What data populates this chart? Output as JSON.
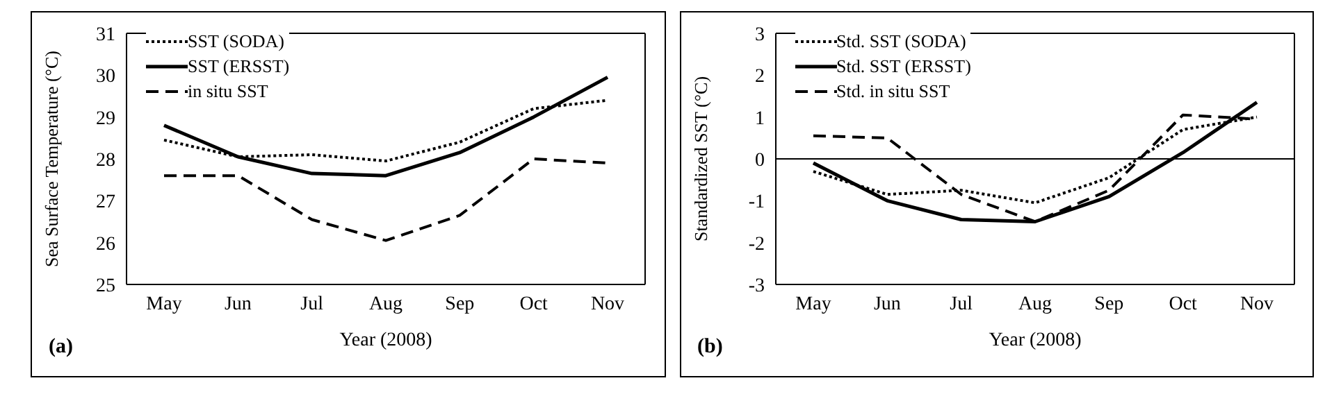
{
  "chart_data": [
    {
      "type": "line",
      "xlabel": "Year (2008)",
      "ylabel": "Sea Surface Temperature (°C)",
      "categories": [
        "May",
        "Jun",
        "Jul",
        "Aug",
        "Sep",
        "Oct",
        "Nov"
      ],
      "ylim": [
        25,
        31
      ],
      "yticks": [
        25,
        26,
        27,
        28,
        29,
        30,
        31
      ],
      "legend": "top left",
      "marker": "none",
      "annotations": [
        "(a)"
      ],
      "series": [
        {
          "name": "SST (SODA)",
          "color": "#000000",
          "line_style": "dotted",
          "values": [
            28.45,
            28.05,
            28.1,
            27.95,
            28.4,
            29.2,
            29.4
          ]
        },
        {
          "name": "SST (ERSST)",
          "color": "#000000",
          "line_style": "solid",
          "values": [
            28.8,
            28.05,
            27.65,
            27.6,
            28.15,
            29.0,
            29.95
          ]
        },
        {
          "name": "in situ SST",
          "color": "#000000",
          "line_style": "dashed",
          "values": [
            27.6,
            27.6,
            26.55,
            26.05,
            26.65,
            28.0,
            27.9
          ]
        }
      ]
    },
    {
      "type": "line",
      "xlabel": "Year (2008)",
      "ylabel": "Standardized  SST (°C)",
      "categories": [
        "May",
        "Jun",
        "Jul",
        "Aug",
        "Sep",
        "Oct",
        "Nov"
      ],
      "ylim": [
        -3,
        3
      ],
      "yticks": [
        -3,
        -2,
        -1,
        0,
        1,
        2,
        3
      ],
      "legend": "top left",
      "marker": "none",
      "annotations": [
        "(b)"
      ],
      "ref_lines": [
        {
          "axis": "y",
          "value": 0,
          "color": "#000000"
        }
      ],
      "series": [
        {
          "name": "Std. SST (SODA)",
          "color": "#000000",
          "line_style": "dotted",
          "values": [
            -0.3,
            -0.85,
            -0.75,
            -1.05,
            -0.45,
            0.7,
            1.0
          ]
        },
        {
          "name": "Std. SST (ERSST)",
          "color": "#000000",
          "line_style": "solid",
          "values": [
            -0.1,
            -1.0,
            -1.45,
            -1.5,
            -0.9,
            0.15,
            1.35
          ]
        },
        {
          "name": "Std. in situ SST",
          "color": "#000000",
          "line_style": "dashed",
          "values": [
            0.55,
            0.5,
            -0.85,
            -1.5,
            -0.75,
            1.05,
            0.95
          ]
        }
      ]
    }
  ]
}
